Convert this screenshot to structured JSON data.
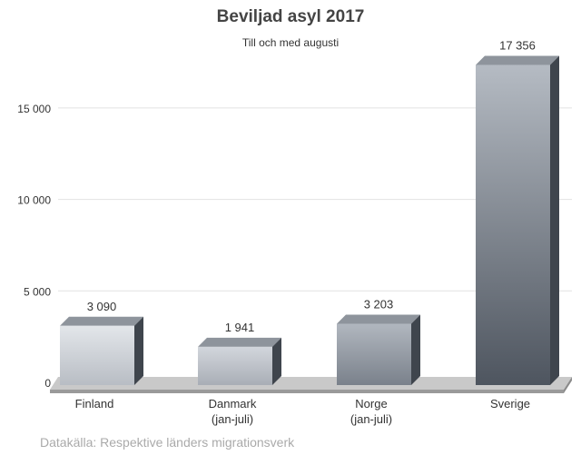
{
  "chart_data": {
    "type": "bar",
    "title": "Beviljad asyl 2017",
    "subtitle": "Till och med augusti",
    "categories": [
      "Finland",
      "Danmark",
      "Norge",
      "Sverige"
    ],
    "category_sublabels": [
      "",
      "(jan-juli)",
      "(jan-juli)",
      ""
    ],
    "values": [
      3090,
      1941,
      3203,
      17356
    ],
    "data_labels": [
      "3 090",
      "1 941",
      "3 203",
      "17 356"
    ],
    "yticks": [
      0,
      5000,
      10000,
      15000
    ],
    "ytick_labels": [
      "0",
      "5 000",
      "10 000",
      "15 000"
    ],
    "ylim": [
      0,
      18000
    ],
    "grid": true,
    "source": "Datakälla: Respektive länders migrationsverk",
    "colors": {
      "bar_light": "#d9dde2",
      "bar_dark": "#4f5660",
      "text": "#333333"
    }
  }
}
